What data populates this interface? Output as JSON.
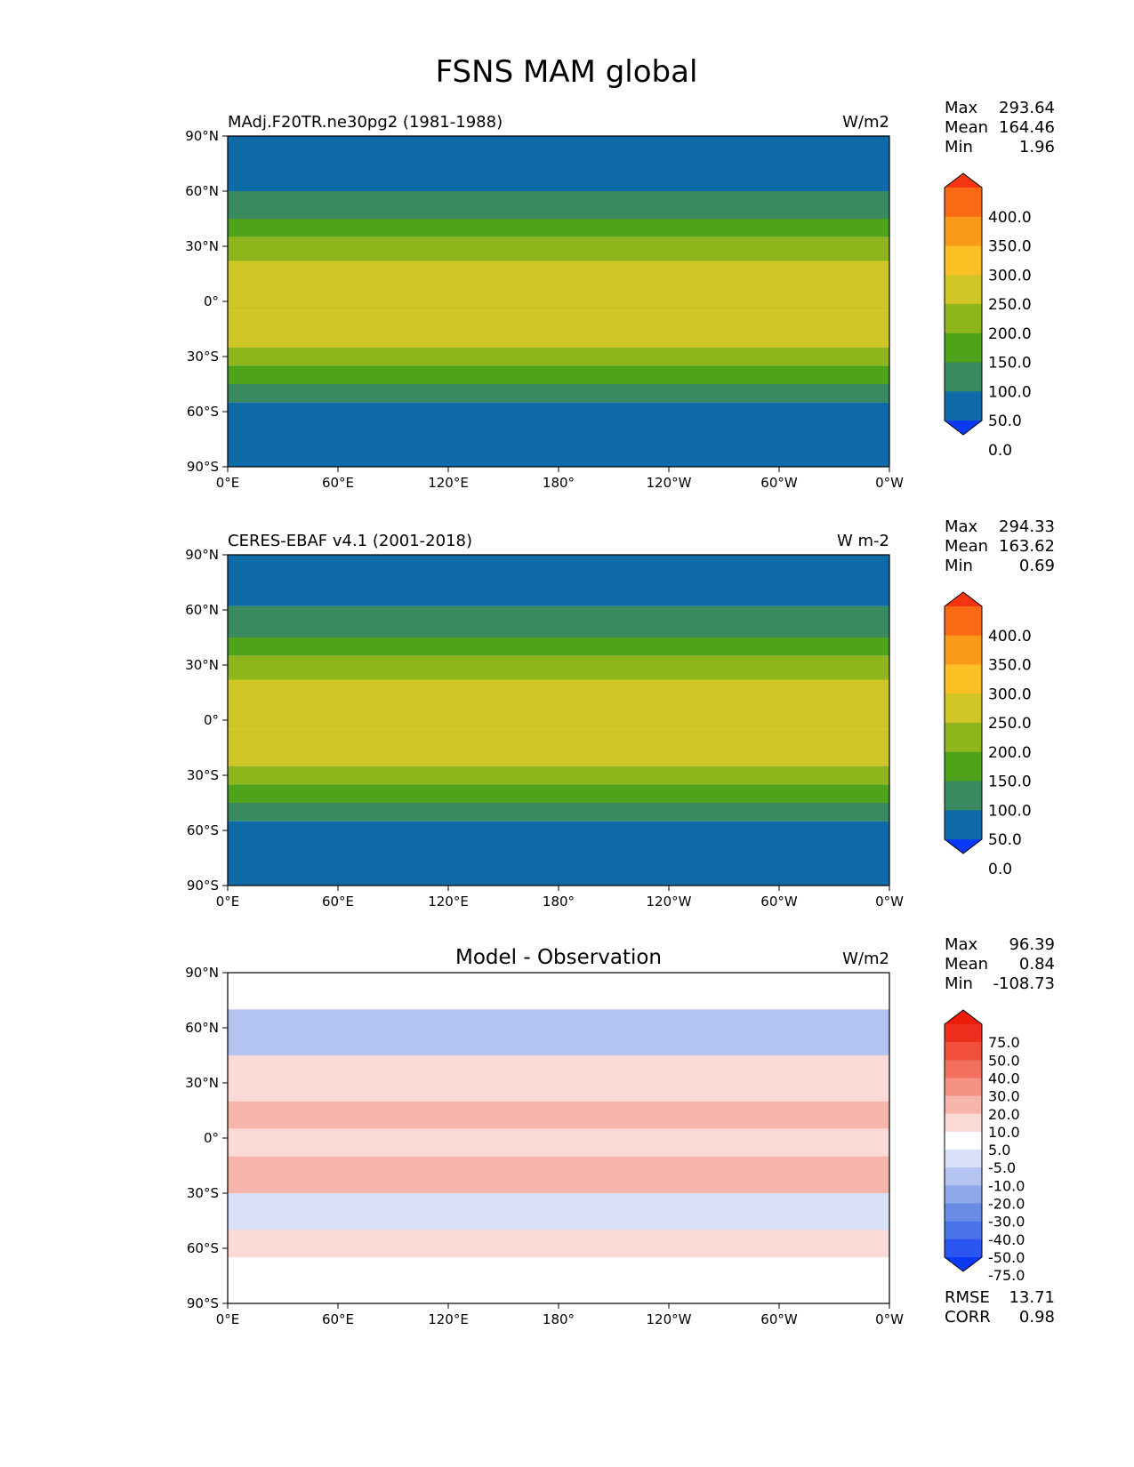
{
  "figure_title": "FSNS MAM global",
  "chart_data": [
    {
      "type": "heatmap",
      "name": "model",
      "title_left": "MAdj.F20TR.ne30pg2 (1981-1988)",
      "title_center": "",
      "units": "W/m2",
      "xticks": [
        "0°E",
        "60°E",
        "120°E",
        "180°",
        "120°W",
        "60°W",
        "0°W"
      ],
      "yticks": [
        "90°N",
        "60°N",
        "30°N",
        "0°",
        "30°S",
        "60°S",
        "90°S"
      ],
      "xlim": [
        0,
        360
      ],
      "ylim": [
        -90,
        90
      ],
      "stats": [
        {
          "label": "Max",
          "value": "293.64"
        },
        {
          "label": "Mean",
          "value": "164.46"
        },
        {
          "label": "Min",
          "value": "1.96"
        }
      ],
      "colorbar": {
        "labels": [
          "400.0",
          "350.0",
          "300.0",
          "250.0",
          "200.0",
          "150.0",
          "100.0",
          "50.0",
          "0.0"
        ],
        "levels": [
          0,
          50,
          100,
          150,
          200,
          250,
          300,
          350,
          400
        ],
        "colors": [
          "#0a3af5",
          "#0f6aa8",
          "#3a8a5f",
          "#4fa31a",
          "#8fb51c",
          "#cfc626",
          "#fcc025",
          "#fb9a18",
          "#f86a14",
          "#f63510"
        ]
      },
      "zonal_bands": [
        {
          "lat": [
            60,
            90
          ],
          "value": 40
        },
        {
          "lat": [
            45,
            60
          ],
          "value": 90
        },
        {
          "lat": [
            35,
            45
          ],
          "value": 140
        },
        {
          "lat": [
            22,
            35
          ],
          "value": 190
        },
        {
          "lat": [
            -5,
            22
          ],
          "value": 240
        },
        {
          "lat": [
            -25,
            -5
          ],
          "value": 210
        },
        {
          "lat": [
            -35,
            -25
          ],
          "value": 185
        },
        {
          "lat": [
            -45,
            -35
          ],
          "value": 130
        },
        {
          "lat": [
            -55,
            -45
          ],
          "value": 90
        },
        {
          "lat": [
            -90,
            -55
          ],
          "value": 30
        }
      ]
    },
    {
      "type": "heatmap",
      "name": "observation",
      "title_left": "CERES-EBAF v4.1 (2001-2018)",
      "title_center": "",
      "units": "W m-2",
      "xticks": [
        "0°E",
        "60°E",
        "120°E",
        "180°",
        "120°W",
        "60°W",
        "0°W"
      ],
      "yticks": [
        "90°N",
        "60°N",
        "30°N",
        "0°",
        "30°S",
        "60°S",
        "90°S"
      ],
      "xlim": [
        0,
        360
      ],
      "ylim": [
        -90,
        90
      ],
      "stats": [
        {
          "label": "Max",
          "value": "294.33"
        },
        {
          "label": "Mean",
          "value": "163.62"
        },
        {
          "label": "Min",
          "value": "0.69"
        }
      ],
      "colorbar": {
        "labels": [
          "400.0",
          "350.0",
          "300.0",
          "250.0",
          "200.0",
          "150.0",
          "100.0",
          "50.0",
          "0.0"
        ],
        "levels": [
          0,
          50,
          100,
          150,
          200,
          250,
          300,
          350,
          400
        ],
        "colors": [
          "#0a3af5",
          "#0f6aa8",
          "#3a8a5f",
          "#4fa31a",
          "#8fb51c",
          "#cfc626",
          "#fcc025",
          "#fb9a18",
          "#f86a14",
          "#f63510"
        ]
      },
      "zonal_bands": [
        {
          "lat": [
            62,
            90
          ],
          "value": 40
        },
        {
          "lat": [
            45,
            62
          ],
          "value": 90
        },
        {
          "lat": [
            35,
            45
          ],
          "value": 140
        },
        {
          "lat": [
            22,
            35
          ],
          "value": 190
        },
        {
          "lat": [
            -5,
            22
          ],
          "value": 235
        },
        {
          "lat": [
            -25,
            -5
          ],
          "value": 210
        },
        {
          "lat": [
            -35,
            -25
          ],
          "value": 180
        },
        {
          "lat": [
            -45,
            -35
          ],
          "value": 130
        },
        {
          "lat": [
            -55,
            -45
          ],
          "value": 90
        },
        {
          "lat": [
            -90,
            -55
          ],
          "value": 30
        }
      ]
    },
    {
      "type": "heatmap",
      "name": "difference",
      "title_left": "",
      "title_center": "Model - Observation",
      "units": "W/m2",
      "xticks": [
        "0°E",
        "60°E",
        "120°E",
        "180°",
        "120°W",
        "60°W",
        "0°W"
      ],
      "yticks": [
        "90°N",
        "60°N",
        "30°N",
        "0°",
        "30°S",
        "60°S",
        "90°S"
      ],
      "xlim": [
        0,
        360
      ],
      "ylim": [
        -90,
        90
      ],
      "stats": [
        {
          "label": "Max",
          "value": "96.39"
        },
        {
          "label": "Mean",
          "value": "0.84"
        },
        {
          "label": "Min",
          "value": "-108.73"
        }
      ],
      "metrics": [
        {
          "label": "RMSE",
          "value": "13.71"
        },
        {
          "label": "CORR",
          "value": "0.98"
        }
      ],
      "colorbar": {
        "labels": [
          "75.0",
          "50.0",
          "40.0",
          "30.0",
          "20.0",
          "10.0",
          "5.0",
          "-5.0",
          "-10.0",
          "-20.0",
          "-30.0",
          "-40.0",
          "-50.0",
          "-75.0"
        ],
        "levels": [
          -75,
          -50,
          -40,
          -30,
          -20,
          -10,
          -5,
          5,
          10,
          20,
          30,
          40,
          50,
          75
        ],
        "colors": [
          "#0a3af5",
          "#2a55f0",
          "#4a72e8",
          "#6a8ce6",
          "#8ea8ea",
          "#b3c4f1",
          "#d8e1f8",
          "#ffffff",
          "#fbd9d4",
          "#f8b5ab",
          "#f59283",
          "#f3705e",
          "#f14f3c",
          "#ef2f1e",
          "#ee1a0a"
        ]
      },
      "zonal_bands": [
        {
          "lat": [
            70,
            90
          ],
          "value": -3
        },
        {
          "lat": [
            45,
            70
          ],
          "value": -12
        },
        {
          "lat": [
            20,
            45
          ],
          "value": 8
        },
        {
          "lat": [
            5,
            20
          ],
          "value": 12
        },
        {
          "lat": [
            -10,
            5
          ],
          "value": 7
        },
        {
          "lat": [
            -30,
            -10
          ],
          "value": 10
        },
        {
          "lat": [
            -50,
            -30
          ],
          "value": -8
        },
        {
          "lat": [
            -65,
            -50
          ],
          "value": 6
        },
        {
          "lat": [
            -90,
            -65
          ],
          "value": 0
        }
      ]
    }
  ]
}
